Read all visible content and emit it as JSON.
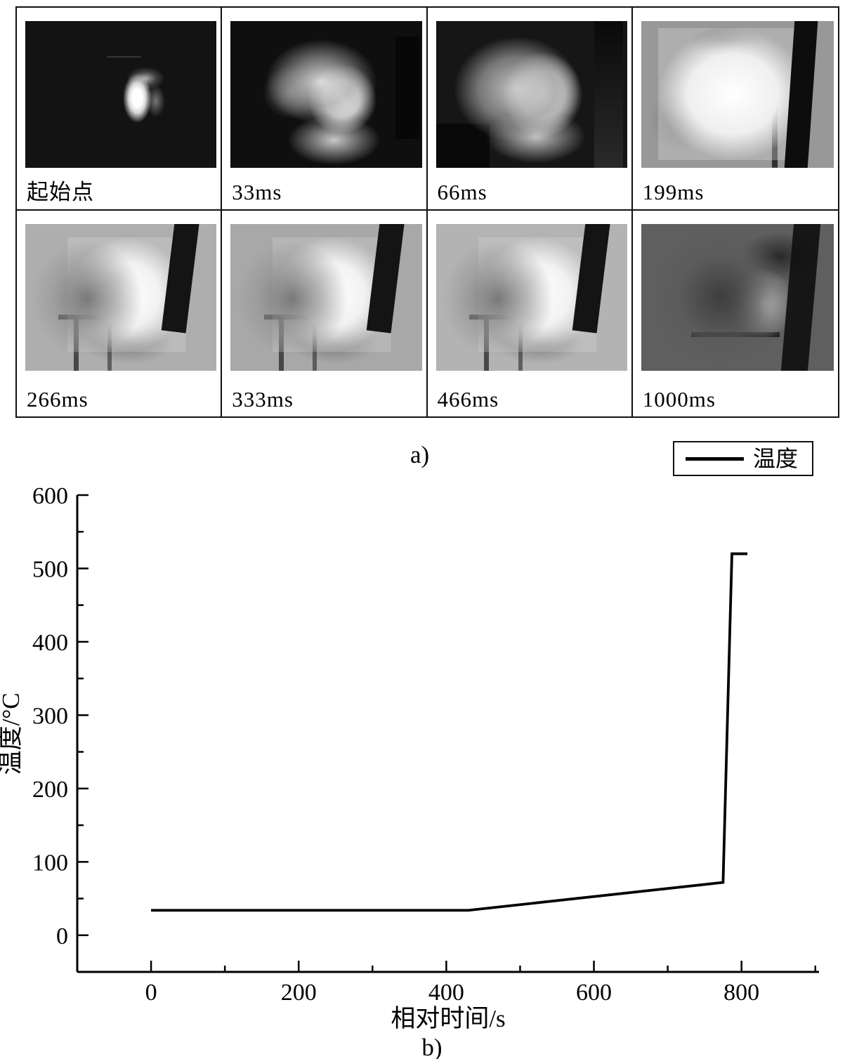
{
  "panel_a": {
    "caption": "a)",
    "frames": [
      {
        "label": "起始点"
      },
      {
        "label": "33ms"
      },
      {
        "label": "66ms"
      },
      {
        "label": "199ms"
      },
      {
        "label": "266ms"
      },
      {
        "label": "333ms"
      },
      {
        "label": "466ms"
      },
      {
        "label": "1000ms"
      }
    ]
  },
  "chart_data": {
    "type": "line",
    "caption": "b)",
    "xlabel": "相对时间/s",
    "ylabel": "温度/°C",
    "legend": [
      {
        "label": "温度",
        "color": "#000000"
      }
    ],
    "legend_position": "top-right",
    "xlim": [
      -100,
      905
    ],
    "ylim": [
      -50,
      600
    ],
    "xticks": [
      0,
      200,
      400,
      600,
      800
    ],
    "xticks_minor": [
      100,
      300,
      500,
      700,
      900
    ],
    "yticks": [
      0,
      100,
      200,
      300,
      400,
      500,
      600
    ],
    "yticks_minor": [
      50,
      150,
      250,
      350,
      450,
      550
    ],
    "grid": false,
    "series": [
      {
        "name": "温度",
        "color": "#000000",
        "points": [
          [
            0,
            34
          ],
          [
            430,
            34
          ],
          [
            775,
            72
          ],
          [
            787,
            520
          ],
          [
            808,
            520
          ]
        ]
      }
    ]
  }
}
